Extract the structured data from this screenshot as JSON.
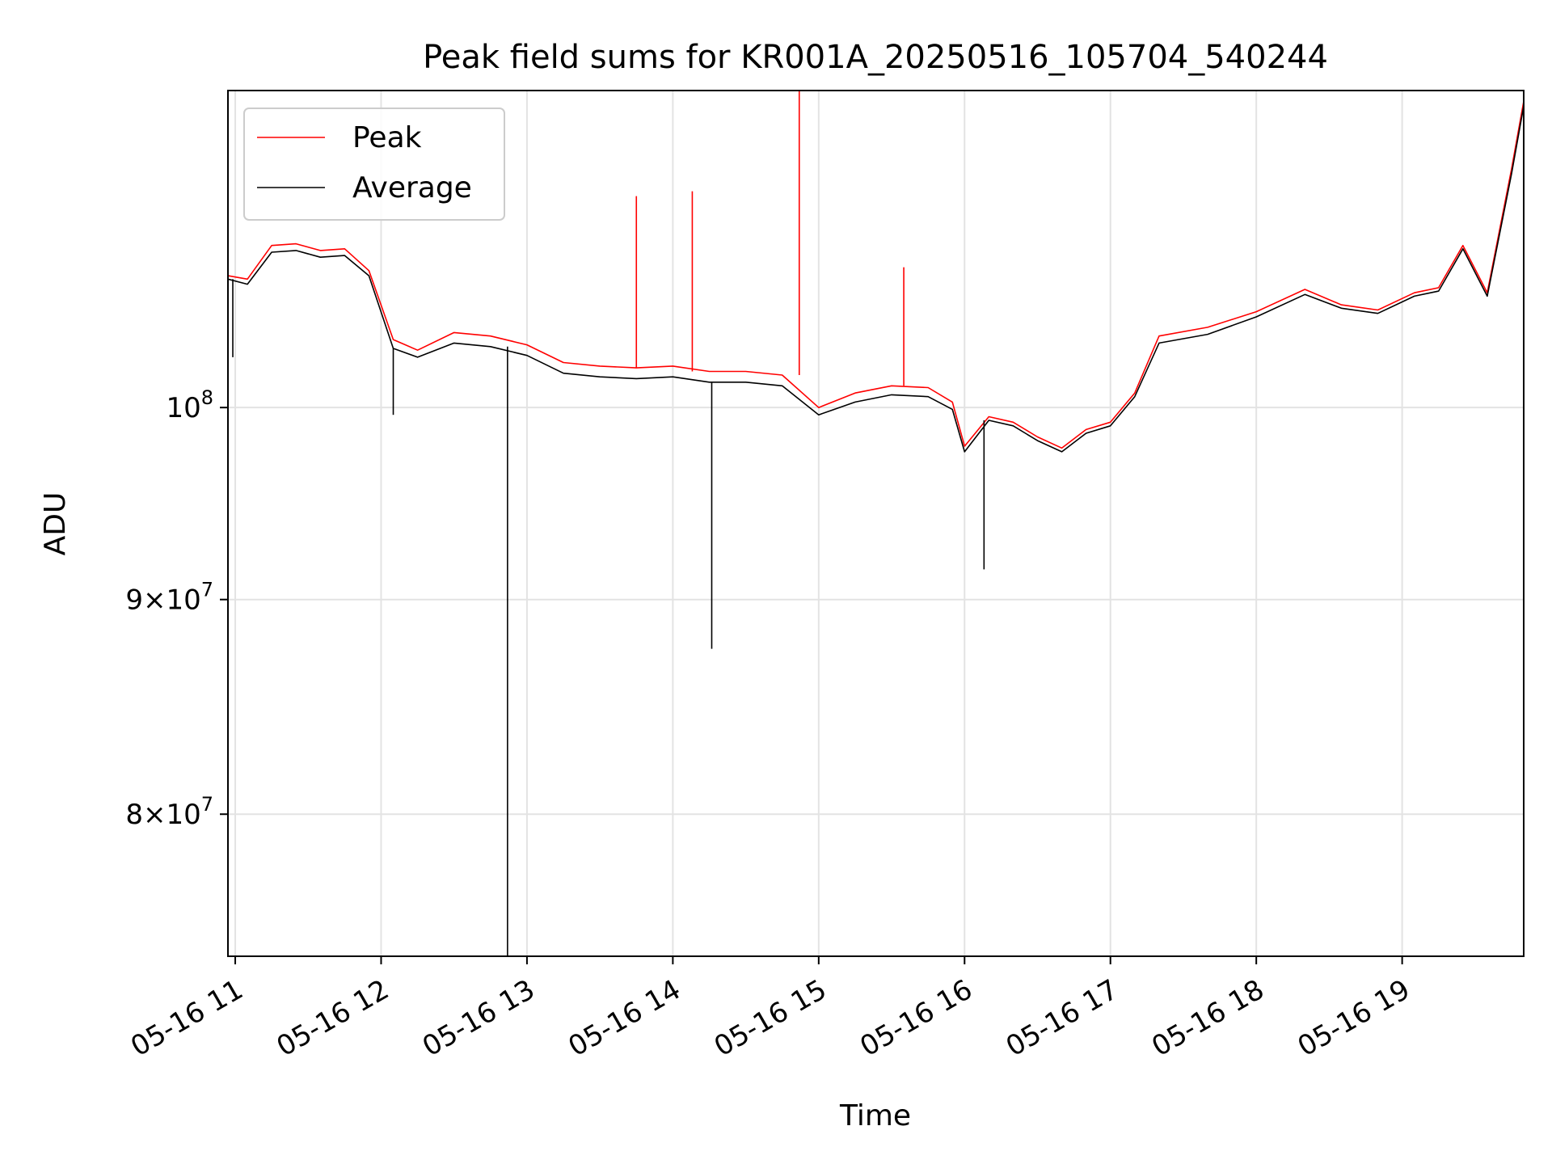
{
  "chart_data": {
    "type": "line",
    "title": "Peak field sums for KR001A_20250516_105704_540244",
    "xlabel": "Time",
    "ylabel": "ADU",
    "y_scale": "log",
    "ylim": [
      74000000,
      119000000
    ],
    "xlim": [
      "2025-05-16 10:57",
      "2025-05-16 19:50"
    ],
    "grid": true,
    "legend_position": "top-left",
    "x_ticks": [
      {
        "t": "2025-05-16 11:00",
        "label": "05-16 11"
      },
      {
        "t": "2025-05-16 12:00",
        "label": "05-16 12"
      },
      {
        "t": "2025-05-16 13:00",
        "label": "05-16 13"
      },
      {
        "t": "2025-05-16 14:00",
        "label": "05-16 14"
      },
      {
        "t": "2025-05-16 15:00",
        "label": "05-16 15"
      },
      {
        "t": "2025-05-16 16:00",
        "label": "05-16 16"
      },
      {
        "t": "2025-05-16 17:00",
        "label": "05-16 17"
      },
      {
        "t": "2025-05-16 18:00",
        "label": "05-16 18"
      },
      {
        "t": "2025-05-16 19:00",
        "label": "05-16 19"
      }
    ],
    "y_ticks": [
      {
        "value": 80000000,
        "mantissa": "8",
        "exponent": "7"
      },
      {
        "value": 90000000,
        "mantissa": "9",
        "exponent": "7"
      },
      {
        "value": 100000000,
        "mantissa": "",
        "exponent": "8"
      }
    ],
    "series": [
      {
        "name": "Peak",
        "color": "#ff0000",
        "x": [
          "2025-05-16 10:57",
          "2025-05-16 11:05",
          "2025-05-16 11:15",
          "2025-05-16 11:25",
          "2025-05-16 11:35",
          "2025-05-16 11:45",
          "2025-05-16 11:55",
          "2025-05-16 12:05",
          "2025-05-16 12:15",
          "2025-05-16 12:30",
          "2025-05-16 12:45",
          "2025-05-16 13:00",
          "2025-05-16 13:15",
          "2025-05-16 13:30",
          "2025-05-16 13:45",
          "2025-05-16 14:00",
          "2025-05-16 14:15",
          "2025-05-16 14:30",
          "2025-05-16 14:45",
          "2025-05-16 15:00",
          "2025-05-16 15:15",
          "2025-05-16 15:30",
          "2025-05-16 15:45",
          "2025-05-16 15:55",
          "2025-05-16 16:00",
          "2025-05-16 16:10",
          "2025-05-16 16:20",
          "2025-05-16 16:30",
          "2025-05-16 16:40",
          "2025-05-16 16:50",
          "2025-05-16 17:00",
          "2025-05-16 17:10",
          "2025-05-16 17:20",
          "2025-05-16 17:40",
          "2025-05-16 18:00",
          "2025-05-16 18:20",
          "2025-05-16 18:35",
          "2025-05-16 18:50",
          "2025-05-16 19:05",
          "2025-05-16 19:15",
          "2025-05-16 19:25",
          "2025-05-16 19:35",
          "2025-05-16 19:45",
          "2025-05-16 19:50"
        ],
        "values": [
          107500000,
          107300000,
          109300000,
          109400000,
          109000000,
          109100000,
          107800000,
          103800000,
          103200000,
          104200000,
          104000000,
          103500000,
          102500000,
          102300000,
          102200000,
          102300000,
          102000000,
          102000000,
          101800000,
          100000000,
          100800000,
          101200000,
          101100000,
          100300000,
          97900000,
          99500000,
          99200000,
          98400000,
          97800000,
          98800000,
          99200000,
          100800000,
          104000000,
          104500000,
          105400000,
          106700000,
          105800000,
          105500000,
          106500000,
          106800000,
          109300000,
          106500000,
          114000000,
          118300000
        ]
      },
      {
        "name": "Average",
        "color": "#000000",
        "x": [
          "2025-05-16 10:57",
          "2025-05-16 11:05",
          "2025-05-16 11:15",
          "2025-05-16 11:25",
          "2025-05-16 11:35",
          "2025-05-16 11:45",
          "2025-05-16 11:55",
          "2025-05-16 12:05",
          "2025-05-16 12:15",
          "2025-05-16 12:30",
          "2025-05-16 12:45",
          "2025-05-16 13:00",
          "2025-05-16 13:15",
          "2025-05-16 13:30",
          "2025-05-16 13:45",
          "2025-05-16 14:00",
          "2025-05-16 14:15",
          "2025-05-16 14:30",
          "2025-05-16 14:45",
          "2025-05-16 15:00",
          "2025-05-16 15:15",
          "2025-05-16 15:30",
          "2025-05-16 15:45",
          "2025-05-16 15:55",
          "2025-05-16 16:00",
          "2025-05-16 16:10",
          "2025-05-16 16:20",
          "2025-05-16 16:30",
          "2025-05-16 16:40",
          "2025-05-16 16:50",
          "2025-05-16 17:00",
          "2025-05-16 17:10",
          "2025-05-16 17:20",
          "2025-05-16 17:40",
          "2025-05-16 18:00",
          "2025-05-16 18:20",
          "2025-05-16 18:35",
          "2025-05-16 18:50",
          "2025-05-16 19:05",
          "2025-05-16 19:15",
          "2025-05-16 19:25",
          "2025-05-16 19:35",
          "2025-05-16 19:45",
          "2025-05-16 19:50"
        ],
        "values": [
          107300000,
          107000000,
          108900000,
          109000000,
          108600000,
          108700000,
          107500000,
          103300000,
          102800000,
          103600000,
          103400000,
          102900000,
          101900000,
          101700000,
          101600000,
          101700000,
          101400000,
          101400000,
          101200000,
          99600000,
          100300000,
          100700000,
          100600000,
          99900000,
          97600000,
          99300000,
          99000000,
          98200000,
          97600000,
          98600000,
          99000000,
          100600000,
          103600000,
          104100000,
          105100000,
          106400000,
          105600000,
          105300000,
          106300000,
          106600000,
          109100000,
          106300000,
          113700000,
          118000000
        ]
      }
    ],
    "events": [
      {
        "t": "2025-05-16 10:59",
        "series": "Average",
        "value": 102800000
      },
      {
        "t": "2025-05-16 12:05",
        "series": "Average",
        "value": 99600000
      },
      {
        "t": "2025-05-16 12:52",
        "series": "Average",
        "value": 74000000
      },
      {
        "t": "2025-05-16 13:45",
        "series": "Peak",
        "value": 112300000
      },
      {
        "t": "2025-05-16 14:08",
        "series": "Peak",
        "value": 112600000
      },
      {
        "t": "2025-05-16 14:16",
        "series": "Average",
        "value": 87600000
      },
      {
        "t": "2025-05-16 14:52",
        "series": "Peak",
        "value": 119000000
      },
      {
        "t": "2025-05-16 15:35",
        "series": "Peak",
        "value": 108000000
      },
      {
        "t": "2025-05-16 16:08",
        "series": "Average",
        "value": 91500000
      }
    ]
  }
}
